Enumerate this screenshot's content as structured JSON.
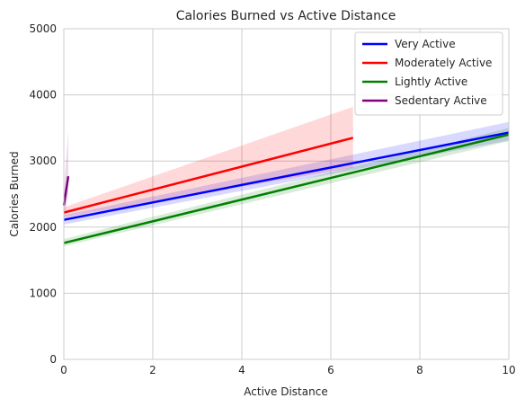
{
  "chart_data": {
    "type": "line",
    "title": "Calories Burned vs Active Distance",
    "xlabel": "Active Distance",
    "ylabel": "Calories Burned",
    "xlim": [
      0,
      10
    ],
    "ylim": [
      0,
      5000
    ],
    "xticks": [
      0,
      2,
      4,
      6,
      8,
      10
    ],
    "yticks": [
      0,
      1000,
      2000,
      3000,
      4000,
      5000
    ],
    "grid": true,
    "legend_position": "top-right",
    "series": [
      {
        "name": "Very Active",
        "color": "#0000ff",
        "x": [
          0,
          10
        ],
        "y": [
          2110,
          3430
        ],
        "band_lower": [
          2040,
          3310
        ],
        "band_upper": [
          2180,
          3590
        ]
      },
      {
        "name": "Moderately Active",
        "color": "#ff0000",
        "x": [
          0,
          6.5
        ],
        "y": [
          2220,
          3350
        ],
        "band_lower": [
          2150,
          2900
        ],
        "band_upper": [
          2300,
          3820
        ]
      },
      {
        "name": "Lightly Active",
        "color": "#008000",
        "x": [
          0,
          10
        ],
        "y": [
          1760,
          3400
        ],
        "band_lower": [
          1710,
          3300
        ],
        "band_upper": [
          1820,
          3500
        ]
      },
      {
        "name": "Sedentary Active",
        "color": "#800080",
        "x": [
          0,
          0.1
        ],
        "y": [
          2330,
          2770
        ],
        "band_lower": [
          2100,
          2500
        ],
        "band_upper": [
          2550,
          3450
        ]
      }
    ]
  }
}
